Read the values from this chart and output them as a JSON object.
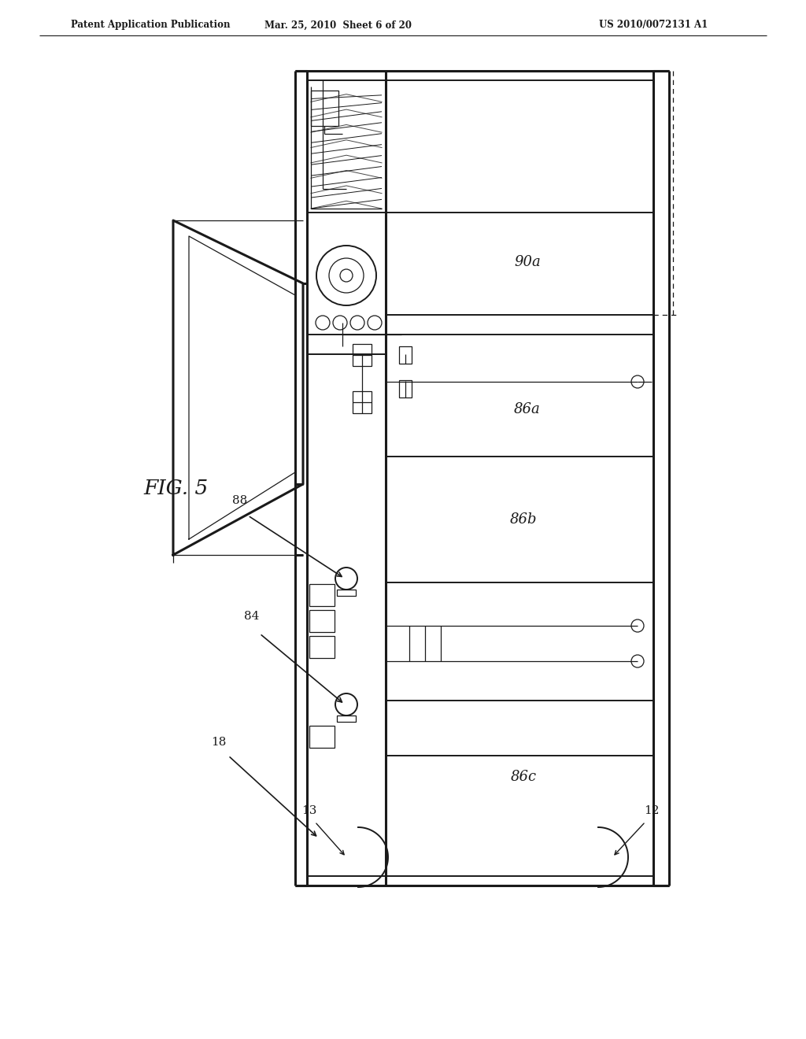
{
  "title_left": "Patent Application Publication",
  "title_mid": "Mar. 25, 2010  Sheet 6 of 20",
  "title_right": "US 2010/0072131 A1",
  "fig_label": "FIG. 5",
  "bg": "#ffffff",
  "lc": "#1a1a1a",
  "label_90a": "90a",
  "label_86a": "86a",
  "label_86b": "86b",
  "label_86c": "86c",
  "label_84": "84",
  "label_88": "88",
  "label_18": "18",
  "label_12": "12",
  "label_13": "13"
}
